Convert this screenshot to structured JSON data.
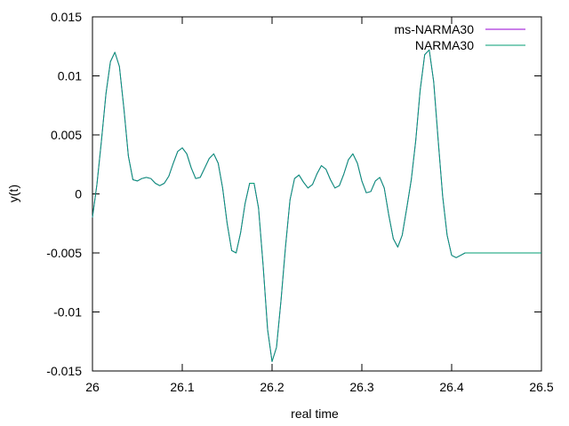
{
  "chart_data": {
    "type": "line",
    "title": "",
    "xlabel": "real time",
    "ylabel": "y(t)",
    "xlim": [
      26,
      26.5
    ],
    "ylim": [
      -0.015,
      0.015
    ],
    "x_ticks": [
      26,
      26.1,
      26.2,
      26.3,
      26.4,
      26.5
    ],
    "x_tick_labels": [
      "26",
      "26.1",
      "26.2",
      "26.3",
      "26.4",
      "26.5"
    ],
    "y_ticks": [
      0.015,
      0.01,
      0.005,
      0,
      -0.005,
      -0.01,
      -0.015
    ],
    "y_tick_labels": [
      "0.015",
      "0.01",
      "0.005",
      "0",
      "-0.005",
      "-0.01",
      "-0.015"
    ],
    "grid": false,
    "legend_position": "top-right",
    "series": [
      {
        "name": "ms-NARMA30",
        "color": "#9400d3",
        "x": [
          26.0,
          26.005,
          26.01,
          26.015,
          26.02,
          26.025,
          26.03,
          26.035,
          26.04,
          26.045,
          26.05,
          26.055,
          26.06,
          26.065,
          26.07,
          26.075,
          26.08,
          26.085,
          26.09,
          26.095,
          26.1,
          26.105,
          26.11,
          26.115,
          26.12,
          26.125,
          26.13,
          26.135,
          26.14,
          26.145,
          26.15,
          26.155,
          26.16,
          26.165,
          26.17,
          26.175,
          26.18,
          26.185,
          26.19,
          26.195,
          26.2,
          26.205,
          26.21,
          26.215,
          26.22,
          26.225,
          26.23,
          26.235,
          26.24,
          26.245,
          26.25,
          26.255,
          26.26,
          26.265,
          26.27,
          26.275,
          26.28,
          26.285,
          26.29,
          26.295,
          26.3,
          26.305,
          26.31,
          26.315,
          26.32,
          26.325,
          26.33,
          26.335,
          26.34,
          26.345,
          26.35,
          26.355,
          26.36,
          26.365,
          26.37,
          26.375,
          26.38,
          26.385,
          26.39,
          26.395,
          26.4,
          26.405,
          26.41,
          26.415,
          26.42,
          26.425,
          26.43,
          26.435,
          26.44,
          26.445,
          26.45,
          26.455,
          26.46,
          26.465,
          26.47,
          26.475,
          26.48,
          26.485,
          26.49,
          26.495,
          26.5
        ],
        "y": [
          -0.002,
          0.0008,
          0.0045,
          0.0085,
          0.0112,
          0.012,
          0.0108,
          0.0072,
          0.0032,
          0.0012,
          0.0011,
          0.0013,
          0.0014,
          0.0013,
          0.0009,
          0.0007,
          0.0009,
          0.0015,
          0.0026,
          0.0036,
          0.0039,
          0.0034,
          0.0022,
          0.0013,
          0.0014,
          0.0022,
          0.003,
          0.0034,
          0.0026,
          0.0005,
          -0.0025,
          -0.0048,
          -0.005,
          -0.0033,
          -0.0008,
          0.0009,
          0.0009,
          -0.0012,
          -0.006,
          -0.0115,
          -0.0142,
          -0.013,
          -0.009,
          -0.0045,
          -0.0005,
          0.0013,
          0.0016,
          0.001,
          0.0005,
          0.0008,
          0.0017,
          0.0024,
          0.0021,
          0.0012,
          0.0005,
          0.0007,
          0.0017,
          0.0029,
          0.0034,
          0.0026,
          0.0011,
          0.0001,
          0.0002,
          0.0011,
          0.0014,
          0.0005,
          -0.0018,
          -0.0038,
          -0.0045,
          -0.0035,
          -0.0012,
          0.0012,
          0.0045,
          0.0088,
          0.0118,
          0.0122,
          0.0095,
          0.0045,
          -0.0002,
          -0.0035,
          -0.0052,
          -0.0054,
          -0.0052,
          -0.005,
          -0.005,
          -0.005,
          -0.005,
          -0.005,
          -0.005,
          -0.005,
          -0.005,
          -0.005,
          -0.005,
          -0.005,
          -0.005,
          -0.005,
          -0.005,
          -0.005,
          -0.005,
          -0.005,
          -0.005
        ]
      },
      {
        "name": "NARMA30",
        "color": "#009e73",
        "x": [
          26.0,
          26.005,
          26.01,
          26.015,
          26.02,
          26.025,
          26.03,
          26.035,
          26.04,
          26.045,
          26.05,
          26.055,
          26.06,
          26.065,
          26.07,
          26.075,
          26.08,
          26.085,
          26.09,
          26.095,
          26.1,
          26.105,
          26.11,
          26.115,
          26.12,
          26.125,
          26.13,
          26.135,
          26.14,
          26.145,
          26.15,
          26.155,
          26.16,
          26.165,
          26.17,
          26.175,
          26.18,
          26.185,
          26.19,
          26.195,
          26.2,
          26.205,
          26.21,
          26.215,
          26.22,
          26.225,
          26.23,
          26.235,
          26.24,
          26.245,
          26.25,
          26.255,
          26.26,
          26.265,
          26.27,
          26.275,
          26.28,
          26.285,
          26.29,
          26.295,
          26.3,
          26.305,
          26.31,
          26.315,
          26.32,
          26.325,
          26.33,
          26.335,
          26.34,
          26.345,
          26.35,
          26.355,
          26.36,
          26.365,
          26.37,
          26.375,
          26.38,
          26.385,
          26.39,
          26.395,
          26.4,
          26.405,
          26.41,
          26.415,
          26.42,
          26.425,
          26.43,
          26.435,
          26.44,
          26.445,
          26.45,
          26.455,
          26.46,
          26.465,
          26.47,
          26.475,
          26.48,
          26.485,
          26.49,
          26.495,
          26.5
        ],
        "y": [
          -0.002,
          0.0008,
          0.0045,
          0.0085,
          0.0112,
          0.012,
          0.0108,
          0.0072,
          0.0032,
          0.0012,
          0.0011,
          0.0013,
          0.0014,
          0.0013,
          0.0009,
          0.0007,
          0.0009,
          0.0015,
          0.0026,
          0.0036,
          0.0039,
          0.0034,
          0.0022,
          0.0013,
          0.0014,
          0.0022,
          0.003,
          0.0034,
          0.0026,
          0.0005,
          -0.0025,
          -0.0048,
          -0.005,
          -0.0033,
          -0.0008,
          0.0009,
          0.0009,
          -0.0012,
          -0.006,
          -0.0115,
          -0.0142,
          -0.013,
          -0.009,
          -0.0045,
          -0.0005,
          0.0013,
          0.0016,
          0.001,
          0.0005,
          0.0008,
          0.0017,
          0.0024,
          0.0021,
          0.0012,
          0.0005,
          0.0007,
          0.0017,
          0.0029,
          0.0034,
          0.0026,
          0.0011,
          0.0001,
          0.0002,
          0.0011,
          0.0014,
          0.0005,
          -0.0018,
          -0.0038,
          -0.0045,
          -0.0035,
          -0.0012,
          0.0012,
          0.0045,
          0.0088,
          0.0118,
          0.0122,
          0.0095,
          0.0045,
          -0.0002,
          -0.0035,
          -0.0052,
          -0.0054,
          -0.0052,
          -0.005,
          -0.005,
          -0.005,
          -0.005,
          -0.005,
          -0.005,
          -0.005,
          -0.005,
          -0.005,
          -0.005,
          -0.005,
          -0.005,
          -0.005,
          -0.005,
          -0.005,
          -0.005,
          -0.005,
          -0.005
        ]
      }
    ]
  }
}
